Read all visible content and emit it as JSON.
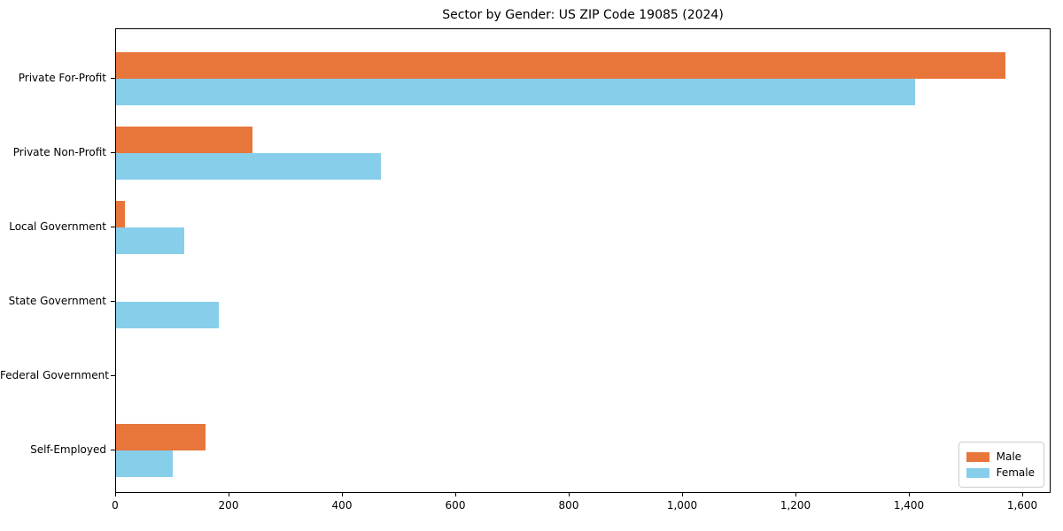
{
  "chart_data": {
    "type": "bar",
    "orientation": "horizontal",
    "title": "Sector by Gender: US ZIP Code 19085 (2024)",
    "categories": [
      "Private For-Profit",
      "Private Non-Profit",
      "Local Government",
      "State Government",
      "Federal Government",
      "Self-Employed"
    ],
    "series": [
      {
        "name": "Male",
        "color": "#E8763B",
        "values": [
          1568,
          240,
          15,
          0,
          0,
          158
        ]
      },
      {
        "name": "Female",
        "color": "#87CEEB",
        "values": [
          1410,
          467,
          121,
          182,
          0,
          100
        ]
      }
    ],
    "xlabel": "",
    "ylabel": "",
    "xlim": [
      0,
      1650
    ],
    "xticks": [
      0,
      200,
      400,
      600,
      800,
      1000,
      1200,
      1400,
      1600
    ],
    "xtick_labels": [
      "0",
      "200",
      "400",
      "600",
      "800",
      "1,000",
      "1,200",
      "1,400",
      "1,600"
    ],
    "legend_position": "lower right",
    "grid": false,
    "background_color": "#ffffff",
    "spine_color": "#000000"
  }
}
